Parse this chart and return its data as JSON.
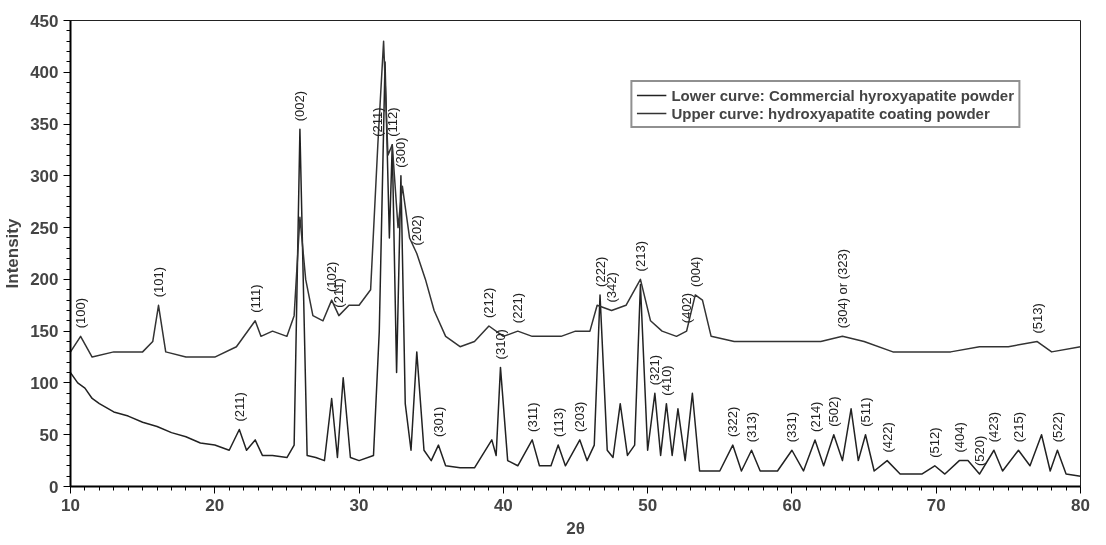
{
  "chart_data": {
    "type": "line",
    "xlabel": "2θ",
    "ylabel": "Intensity",
    "xlim": [
      10,
      80
    ],
    "ylim": [
      0,
      450
    ],
    "xticks": [
      10,
      20,
      30,
      40,
      50,
      60,
      70,
      80
    ],
    "yticks": [
      0,
      50,
      100,
      150,
      200,
      250,
      300,
      350,
      400,
      450
    ],
    "grid": false,
    "legend": "top right",
    "marker": "none",
    "line_style": "solid",
    "series": [
      {
        "name": "Lower curve: Commercial hyroxyapatite powder",
        "color": "#222222",
        "x": [
          10,
          10.5,
          11,
          11.5,
          12,
          13,
          14,
          15,
          16,
          17,
          18,
          19,
          20,
          21,
          21.7,
          22.2,
          22.8,
          23.3,
          24,
          25,
          25.5,
          25.9,
          26.4,
          27,
          27.6,
          28.1,
          28.5,
          28.9,
          29.4,
          30,
          31,
          31.4,
          31.8,
          32.1,
          32.3,
          32.6,
          32.9,
          33.2,
          33.6,
          34.0,
          34.5,
          35,
          35.5,
          36,
          37,
          38,
          39.2,
          39.5,
          39.8,
          40.3,
          41,
          42,
          42.5,
          43.3,
          43.8,
          44.3,
          45.3,
          45.8,
          46.3,
          46.7,
          47.2,
          47.6,
          48.1,
          48.6,
          49.1,
          49.5,
          50,
          50.5,
          50.9,
          51.3,
          51.7,
          52.1,
          52.6,
          53.1,
          53.6,
          54,
          55,
          55.9,
          56.5,
          57.2,
          57.8,
          59,
          60,
          60.8,
          61.6,
          62.2,
          62.9,
          63.5,
          64.1,
          64.6,
          65.1,
          65.7,
          66.6,
          67.5,
          69,
          69.9,
          70.6,
          71.6,
          72.2,
          73,
          74,
          74.6,
          75.7,
          76.5,
          77.3,
          77.9,
          78.4,
          79,
          80
        ],
        "values": [
          110,
          100,
          95,
          85,
          80,
          72,
          68,
          62,
          58,
          52,
          48,
          42,
          40,
          35,
          55,
          35,
          45,
          30,
          30,
          28,
          40,
          345,
          30,
          28,
          25,
          85,
          28,
          105,
          28,
          25,
          30,
          150,
          410,
          240,
          330,
          110,
          300,
          80,
          35,
          130,
          35,
          25,
          40,
          20,
          18,
          18,
          45,
          30,
          115,
          25,
          20,
          45,
          20,
          20,
          40,
          20,
          45,
          25,
          40,
          185,
          35,
          28,
          80,
          30,
          40,
          195,
          35,
          90,
          30,
          80,
          30,
          75,
          25,
          90,
          15,
          15,
          15,
          40,
          15,
          35,
          15,
          15,
          35,
          15,
          45,
          20,
          50,
          25,
          75,
          25,
          50,
          15,
          25,
          12,
          12,
          20,
          12,
          25,
          25,
          12,
          35,
          15,
          35,
          20,
          50,
          15,
          35,
          12,
          10
        ]
      },
      {
        "name": "Upper curve: hydroxyapatite coating powder",
        "color": "#333333",
        "x": [
          10,
          10.7,
          11.5,
          13,
          15,
          15.7,
          16.1,
          16.6,
          18,
          20,
          21.5,
          22.8,
          23.2,
          24,
          25,
          25.5,
          25.9,
          26.3,
          26.8,
          27.5,
          28.1,
          28.6,
          29.3,
          30,
          30.8,
          31.3,
          31.7,
          32.0,
          32.3,
          32.7,
          33.0,
          33.5,
          34.0,
          34.6,
          35.2,
          36,
          37,
          38,
          39,
          40,
          41,
          42,
          43,
          44,
          45,
          46,
          46.5,
          47.5,
          48.5,
          49.5,
          50.2,
          51,
          52,
          52.7,
          53.3,
          53.8,
          54.4,
          56,
          58,
          60,
          62,
          63.5,
          65,
          67,
          69,
          71,
          73,
          75,
          77,
          78,
          80
        ],
        "values": [
          130,
          145,
          125,
          130,
          130,
          140,
          175,
          130,
          125,
          125,
          135,
          160,
          145,
          150,
          145,
          165,
          260,
          200,
          165,
          160,
          180,
          165,
          175,
          175,
          190,
          330,
          430,
          320,
          330,
          250,
          290,
          240,
          225,
          200,
          170,
          145,
          135,
          140,
          155,
          145,
          150,
          145,
          145,
          145,
          150,
          150,
          175,
          170,
          175,
          200,
          160,
          150,
          145,
          150,
          185,
          180,
          145,
          140,
          140,
          140,
          140,
          145,
          140,
          130,
          130,
          130,
          135,
          135,
          140,
          130,
          135
        ]
      }
    ],
    "annotations": [
      {
        "text": "(100)",
        "x": 10.7,
        "y": 145
      },
      {
        "text": "(101)",
        "x": 16.1,
        "y": 175
      },
      {
        "text": "(111)",
        "x": 22.8,
        "y": 160
      },
      {
        "text": "(211)",
        "x": 21.7,
        "y": 55
      },
      {
        "text": "(002)",
        "x": 25.9,
        "y": 345
      },
      {
        "text": "(102)",
        "x": 28.1,
        "y": 180
      },
      {
        "text": "(211)",
        "x": 28.6,
        "y": 165
      },
      {
        "text": "(211)",
        "x": 31.3,
        "y": 330
      },
      {
        "text": "(112)",
        "x": 32.3,
        "y": 330
      },
      {
        "text": "(300)",
        "x": 32.9,
        "y": 300
      },
      {
        "text": "(202)",
        "x": 34.0,
        "y": 225
      },
      {
        "text": "(212)",
        "x": 39,
        "y": 155
      },
      {
        "text": "(221)",
        "x": 41,
        "y": 150
      },
      {
        "text": "(301)",
        "x": 35.5,
        "y": 40
      },
      {
        "text": "(310)",
        "x": 39.8,
        "y": 115
      },
      {
        "text": "(311)",
        "x": 42,
        "y": 45
      },
      {
        "text": "(113)",
        "x": 43.8,
        "y": 40
      },
      {
        "text": "(203)",
        "x": 45.3,
        "y": 45
      },
      {
        "text": "(222)",
        "x": 46.7,
        "y": 185
      },
      {
        "text": "(342)",
        "x": 47.5,
        "y": 170
      },
      {
        "text": "(213)",
        "x": 49.5,
        "y": 200
      },
      {
        "text": "(402)",
        "x": 52.7,
        "y": 150
      },
      {
        "text": "(004)",
        "x": 53.3,
        "y": 185
      },
      {
        "text": "(321)",
        "x": 50.5,
        "y": 90
      },
      {
        "text": "(410)",
        "x": 51.3,
        "y": 80
      },
      {
        "text": "(304) or (323)",
        "x": 63.5,
        "y": 145
      },
      {
        "text": "(513)",
        "x": 77,
        "y": 140
      },
      {
        "text": "(322)",
        "x": 55.9,
        "y": 40
      },
      {
        "text": "(313)",
        "x": 57.2,
        "y": 35
      },
      {
        "text": "(331)",
        "x": 60,
        "y": 35
      },
      {
        "text": "(214)",
        "x": 61.6,
        "y": 45
      },
      {
        "text": "(502)",
        "x": 62.9,
        "y": 50
      },
      {
        "text": "(511)",
        "x": 65.1,
        "y": 50
      },
      {
        "text": "(422)",
        "x": 66.6,
        "y": 25
      },
      {
        "text": "(512)",
        "x": 69.9,
        "y": 20
      },
      {
        "text": "(404)",
        "x": 71.6,
        "y": 25
      },
      {
        "text": "(520)",
        "x": 73,
        "y": 12
      },
      {
        "text": "(423)",
        "x": 74,
        "y": 35
      },
      {
        "text": "(215)",
        "x": 75.7,
        "y": 35
      },
      {
        "text": "(522)",
        "x": 78.4,
        "y": 35
      }
    ]
  }
}
